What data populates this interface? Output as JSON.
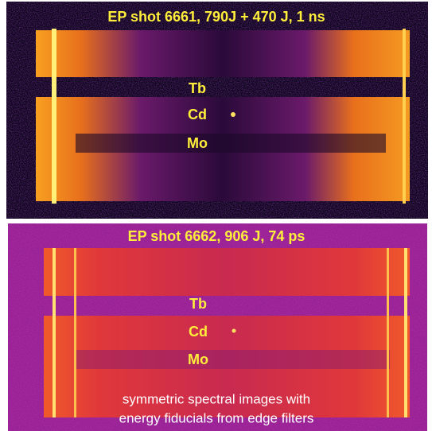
{
  "panels": [
    {
      "title": "EP shot 6661, 790J + 470 J, 1 ns",
      "labels": [
        "Tb",
        "Cd",
        "Mo"
      ]
    },
    {
      "title": "EP shot 6662, 906 J, 74 ps",
      "labels": [
        "Tb",
        "Cd",
        "Mo"
      ],
      "caption": [
        "symmetric spectral images with",
        "energy fiducials from edge filters"
      ]
    }
  ]
}
